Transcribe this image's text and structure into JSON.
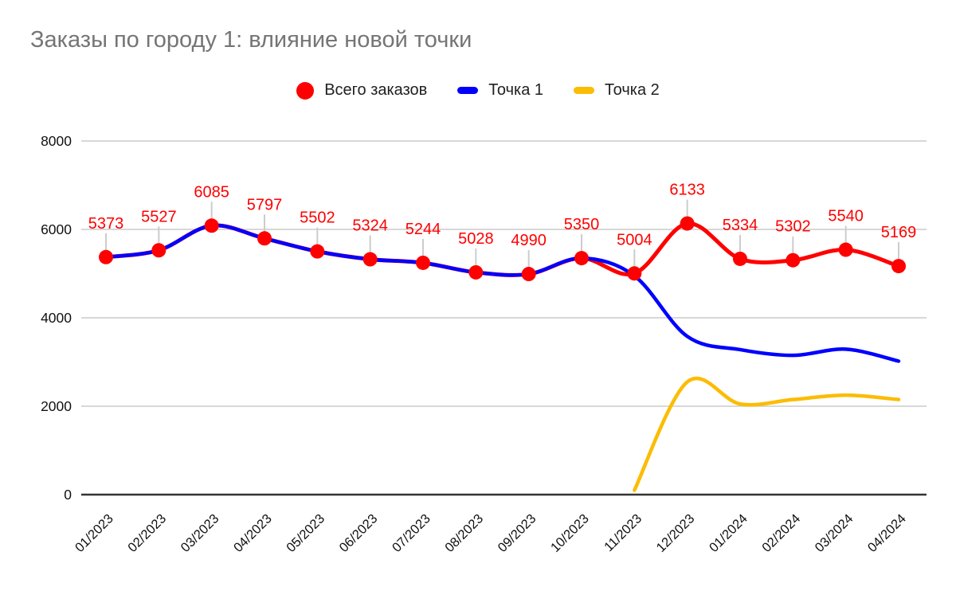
{
  "title": "Заказы по городу 1: влияние новой точки",
  "colors": {
    "title": "#757575",
    "text": "#212121",
    "grid": "#cccccc",
    "axis": "#333333",
    "total_series": "#ff0000",
    "point1_series": "#0000ff",
    "point2_series": "#fbbc04"
  },
  "legend": [
    {
      "id": "total-orders",
      "label": "Всего заказов",
      "color": "#ff0000",
      "marker": "circle"
    },
    {
      "id": "point-1",
      "label": "Точка 1",
      "color": "#0000ff",
      "marker": "bar"
    },
    {
      "id": "point-2",
      "label": "Точка 2",
      "color": "#fbbc04",
      "marker": "bar"
    }
  ],
  "chart_data": {
    "type": "line",
    "title": "Заказы по городу 1: влияние новой точки",
    "smooth": true,
    "grid": true,
    "legend_position": "top",
    "xlabel": "",
    "ylabel": "",
    "ylim": [
      0,
      8000
    ],
    "yticks": [
      0,
      2000,
      4000,
      6000,
      8000
    ],
    "x": [
      "01/2023",
      "02/2023",
      "03/2023",
      "04/2023",
      "05/2023",
      "06/2023",
      "07/2023",
      "08/2023",
      "09/2023",
      "10/2023",
      "11/2023",
      "12/2023",
      "01/2024",
      "02/2024",
      "03/2024",
      "04/2024"
    ],
    "series": [
      {
        "name": "Всего заказов",
        "color": "#ff0000",
        "line_width": 5,
        "points": true,
        "point_radius": 9,
        "data_labels": true,
        "values": [
          5373,
          5527,
          6085,
          5797,
          5502,
          5324,
          5244,
          5028,
          4990,
          5350,
          5004,
          6133,
          5334,
          5302,
          5540,
          5169
        ]
      },
      {
        "name": "Точка 1",
        "color": "#0000ff",
        "line_width": 4.5,
        "points": false,
        "point_radius": 0,
        "data_labels": false,
        "values": [
          5373,
          5527,
          6085,
          5797,
          5502,
          5324,
          5244,
          5028,
          4990,
          5350,
          4950,
          3580,
          3280,
          3150,
          3290,
          3020
        ]
      },
      {
        "name": "Точка 2",
        "color": "#fbbc04",
        "line_width": 4.5,
        "points": false,
        "point_radius": 0,
        "data_labels": false,
        "values": [
          null,
          null,
          null,
          null,
          null,
          null,
          null,
          null,
          null,
          null,
          100,
          2550,
          2050,
          2150,
          2250,
          2150
        ]
      }
    ]
  }
}
